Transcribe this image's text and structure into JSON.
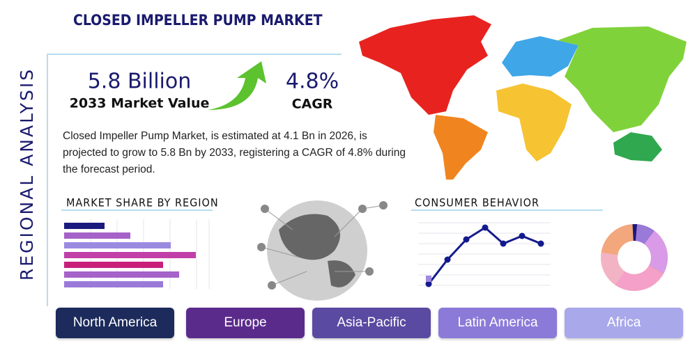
{
  "header": {
    "title": "CLOSED IMPELLER PUMP MARKET",
    "side_label": "REGIONAL ANALYSIS"
  },
  "stats": [
    {
      "value": "5.8 Billion",
      "label": "2033 Market Value"
    },
    {
      "value": "4.8%",
      "label": "CAGR"
    }
  ],
  "description": "Closed Impeller Pump Market, is estimated at 4.1 Bn in 2026, is projected to grow to 5.8 Bn by 2033, registering a CAGR of 4.8% during the forecast period.",
  "sections": [
    "MARKET SHARE BY REGION",
    "CONSUMER BEHAVIOR"
  ],
  "regions": [
    "North America",
    "Europe",
    "Asia-Pacific",
    "Latin America",
    "Africa"
  ]
}
